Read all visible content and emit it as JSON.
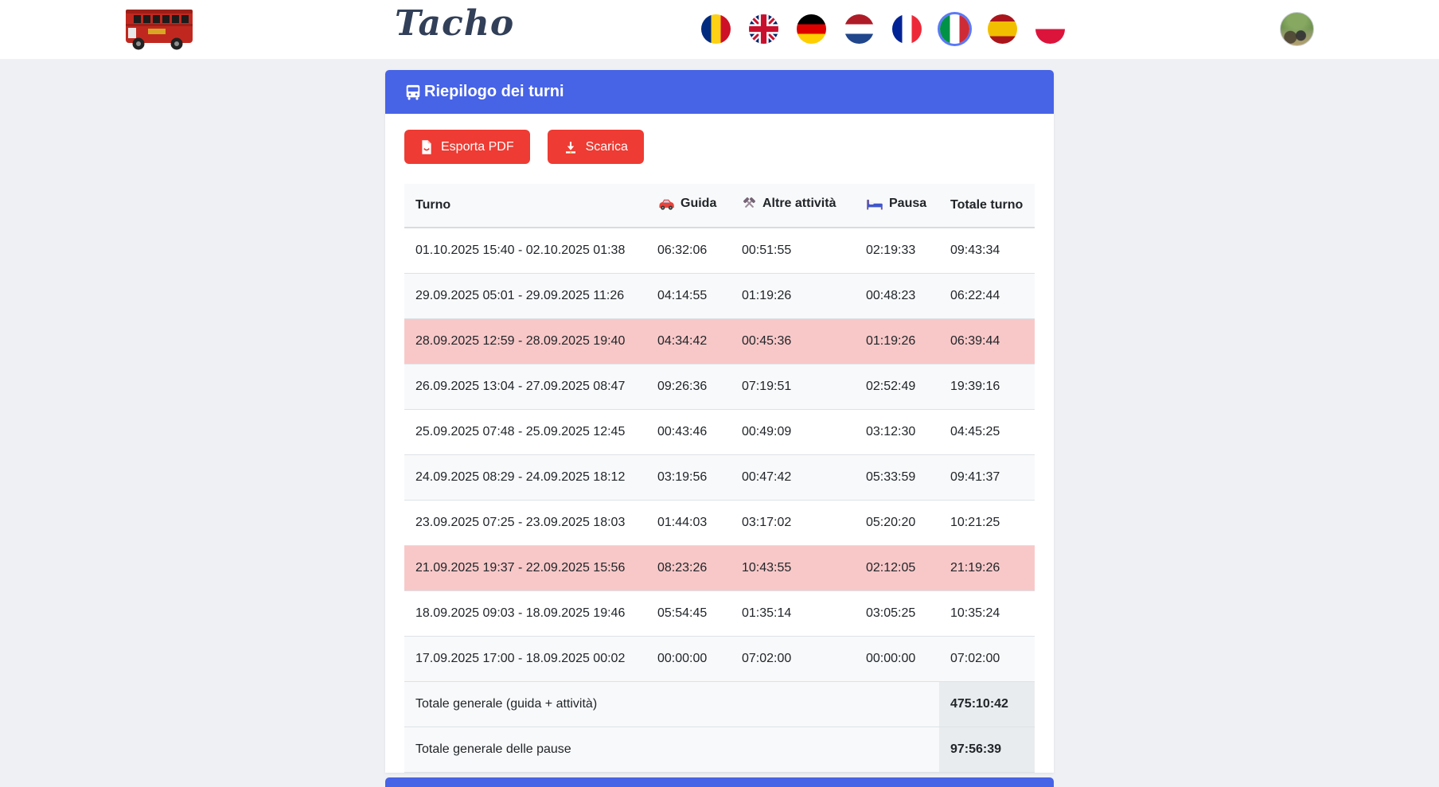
{
  "header": {
    "brand": "Tacho",
    "logo": "double-decker-bus-logo",
    "languages": [
      {
        "code": "ro",
        "name": "romanian",
        "selected": false
      },
      {
        "code": "gb",
        "name": "english",
        "selected": false
      },
      {
        "code": "de",
        "name": "german",
        "selected": false
      },
      {
        "code": "nl",
        "name": "dutch",
        "selected": false
      },
      {
        "code": "fr",
        "name": "french",
        "selected": false
      },
      {
        "code": "it",
        "name": "italian",
        "selected": true
      },
      {
        "code": "es",
        "name": "spanish",
        "selected": false
      },
      {
        "code": "pl",
        "name": "polish",
        "selected": false
      }
    ],
    "avatar": "user-profile-photo"
  },
  "panel": {
    "title": "Riepilogo dei turni",
    "title_icon": "bus-icon",
    "export_pdf_label": "Esporta PDF",
    "download_label": "Scarica"
  },
  "table": {
    "columns": [
      {
        "label": "Turno",
        "icon": ""
      },
      {
        "label": "Guida",
        "icon": "car-icon"
      },
      {
        "label": "Altre attività",
        "icon": "tools-icon"
      },
      {
        "label": "Pausa",
        "icon": "bed-icon"
      },
      {
        "label": "Totale turno",
        "icon": ""
      }
    ],
    "rows": [
      {
        "turno": "01.10.2025 15:40 - 02.10.2025 01:38",
        "guida": "06:32:06",
        "altre": "00:51:55",
        "pausa": "02:19:33",
        "totale": "09:43:34",
        "highlight": false
      },
      {
        "turno": "29.09.2025 05:01 - 29.09.2025 11:26",
        "guida": "04:14:55",
        "altre": "01:19:26",
        "pausa": "00:48:23",
        "totale": "06:22:44",
        "highlight": false
      },
      {
        "turno": "28.09.2025 12:59 - 28.09.2025 19:40",
        "guida": "04:34:42",
        "altre": "00:45:36",
        "pausa": "01:19:26",
        "totale": "06:39:44",
        "highlight": true
      },
      {
        "turno": "26.09.2025 13:04 - 27.09.2025 08:47",
        "guida": "09:26:36",
        "altre": "07:19:51",
        "pausa": "02:52:49",
        "totale": "19:39:16",
        "highlight": false
      },
      {
        "turno": "25.09.2025 07:48 - 25.09.2025 12:45",
        "guida": "00:43:46",
        "altre": "00:49:09",
        "pausa": "03:12:30",
        "totale": "04:45:25",
        "highlight": false
      },
      {
        "turno": "24.09.2025 08:29 - 24.09.2025 18:12",
        "guida": "03:19:56",
        "altre": "00:47:42",
        "pausa": "05:33:59",
        "totale": "09:41:37",
        "highlight": false
      },
      {
        "turno": "23.09.2025 07:25 - 23.09.2025 18:03",
        "guida": "01:44:03",
        "altre": "03:17:02",
        "pausa": "05:20:20",
        "totale": "10:21:25",
        "highlight": false
      },
      {
        "turno": "21.09.2025 19:37 - 22.09.2025 15:56",
        "guida": "08:23:26",
        "altre": "10:43:55",
        "pausa": "02:12:05",
        "totale": "21:19:26",
        "highlight": true
      },
      {
        "turno": "18.09.2025 09:03 - 18.09.2025 19:46",
        "guida": "05:54:45",
        "altre": "01:35:14",
        "pausa": "03:05:25",
        "totale": "10:35:24",
        "highlight": false
      },
      {
        "turno": "17.09.2025 17:00 - 18.09.2025 00:02",
        "guida": "00:00:00",
        "altre": "07:02:00",
        "pausa": "00:00:00",
        "totale": "07:02:00",
        "highlight": false
      }
    ],
    "totals": [
      {
        "label": "Totale generale (guida + attività)",
        "value": "475:10:42"
      },
      {
        "label": "Totale generale delle pause",
        "value": "97:56:39"
      }
    ]
  },
  "colors": {
    "primary_blue": "#4763e6",
    "button_red": "#ee3b33",
    "row_highlight_pink": "#f8c8c8",
    "stripe_gray": "#f8f9fa",
    "total_cell_gray": "#e9ecef",
    "page_background": "#eef0f4"
  }
}
